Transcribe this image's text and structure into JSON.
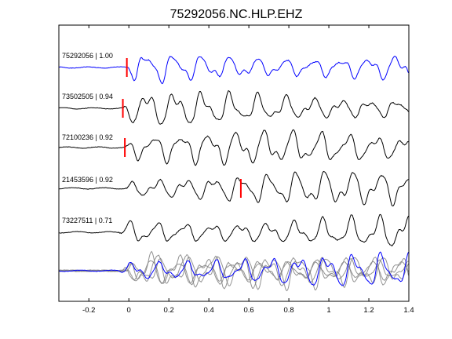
{
  "title": "75292056.NC.HLP.EHZ",
  "chart_data": {
    "type": "line",
    "title": "75292056.NC.HLP.EHZ",
    "xlabel": "",
    "ylabel": "",
    "xlim": [
      -0.35,
      1.4
    ],
    "xticks": [
      -0.2,
      0,
      0.2,
      0.4,
      0.6,
      0.8,
      1,
      1.2,
      1.4
    ],
    "xtick_labels": [
      "-0.2",
      "0",
      "0.2",
      "0.4",
      "0.6",
      "0.8",
      "1",
      "1.2",
      "1.4"
    ],
    "grid": false,
    "traces": [
      {
        "label": "75292056 | 1.00",
        "color": "#0000ff",
        "pick_time": -0.01,
        "onset": -0.01,
        "seed": 1
      },
      {
        "label": "73502505 | 0.94",
        "color": "#000000",
        "pick_time": -0.03,
        "onset": -0.03,
        "seed": 2
      },
      {
        "label": "72100236 | 0.92",
        "color": "#000000",
        "pick_time": -0.02,
        "onset": -0.02,
        "seed": 3
      },
      {
        "label": "21453596 | 0.92",
        "color": "#000000",
        "pick_time": 0.56,
        "onset": -0.02,
        "seed": 4
      },
      {
        "label": "73227511 | 0.71",
        "color": "#000000",
        "pick_time": null,
        "onset": -0.05,
        "seed": 5
      }
    ],
    "stack": {
      "colors": [
        "#808080",
        "#808080",
        "#808080",
        "#808080",
        "#0000ff"
      ]
    },
    "pick_color": "#ff0000"
  }
}
